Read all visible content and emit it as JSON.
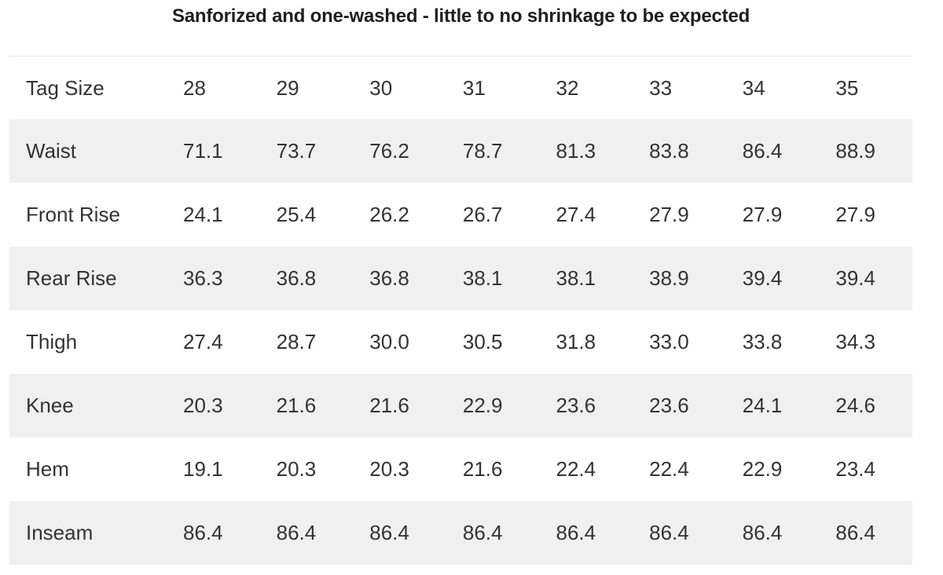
{
  "chart_data": {
    "type": "table",
    "title": "Sanforized and one-washed - little to no shrinkage to be expected",
    "columns": [
      "Tag Size",
      "28",
      "29",
      "30",
      "31",
      "32",
      "33",
      "34",
      "35"
    ],
    "rows": [
      {
        "label": "Waist",
        "values": [
          "71.1",
          "73.7",
          "76.2",
          "78.7",
          "81.3",
          "83.8",
          "86.4",
          "88.9"
        ]
      },
      {
        "label": "Front Rise",
        "values": [
          "24.1",
          "25.4",
          "26.2",
          "26.7",
          "27.4",
          "27.9",
          "27.9",
          "27.9"
        ]
      },
      {
        "label": "Rear Rise",
        "values": [
          "36.3",
          "36.8",
          "36.8",
          "38.1",
          "38.1",
          "38.9",
          "39.4",
          "39.4"
        ]
      },
      {
        "label": "Thigh",
        "values": [
          "27.4",
          "28.7",
          "30.0",
          "30.5",
          "31.8",
          "33.0",
          "33.8",
          "34.3"
        ]
      },
      {
        "label": "Knee",
        "values": [
          "20.3",
          "21.6",
          "21.6",
          "22.9",
          "23.6",
          "23.6",
          "24.1",
          "24.6"
        ]
      },
      {
        "label": "Hem",
        "values": [
          "19.1",
          "20.3",
          "20.3",
          "21.6",
          "22.4",
          "22.4",
          "22.9",
          "23.4"
        ]
      },
      {
        "label": "Inseam",
        "values": [
          "86.4",
          "86.4",
          "86.4",
          "86.4",
          "86.4",
          "86.4",
          "86.4",
          "86.4"
        ]
      }
    ],
    "layout_hints": {
      "stripe_rows": [
        "Waist",
        "Rear Rise",
        "Knee",
        "Inseam"
      ],
      "first_column_is_row_header": true
    }
  },
  "colors": {
    "stripe_background": "#f0f0f0",
    "table_top_border": "#e7e7e7",
    "body_text": "#333333",
    "title_text": "#1f1f1f",
    "page_background": "#ffffff"
  }
}
